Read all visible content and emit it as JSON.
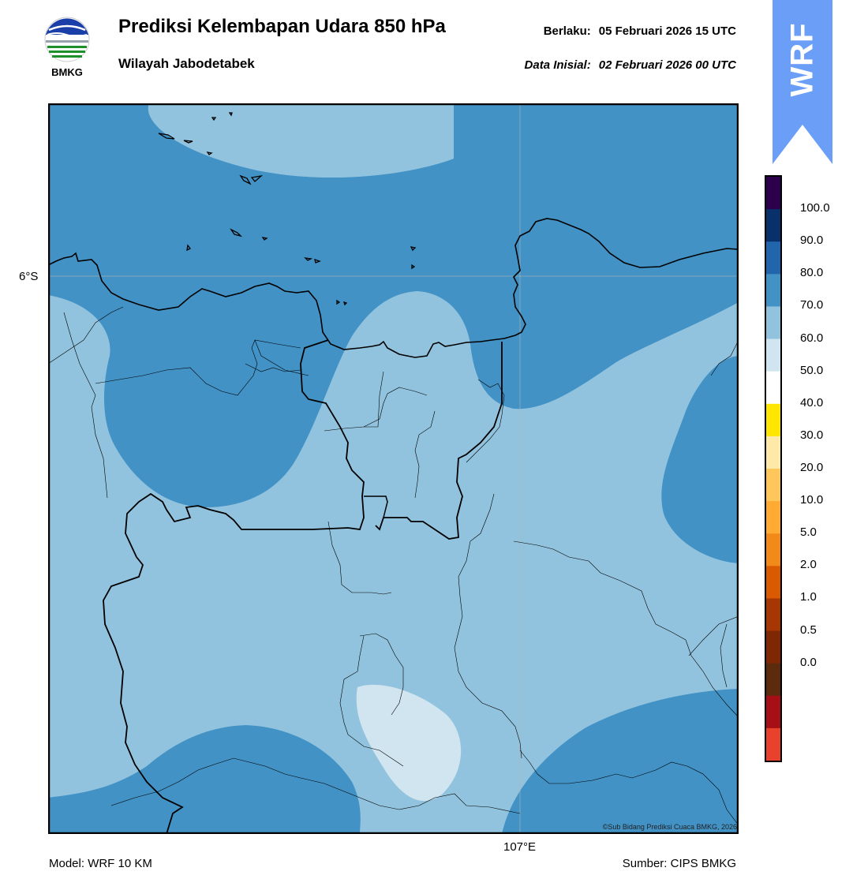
{
  "logo": {
    "text": "BMKG",
    "icon": "bmkg-logo-icon"
  },
  "header": {
    "title": "Prediksi Kelembapan Udara 850 hPa",
    "subtitle": "Wilayah Jabodetabek",
    "valid_label": "Berlaku:",
    "valid_value": "05 Februari 2026 15 UTC",
    "init_label": "Data Inisial:",
    "init_value": "02 Februari 2026 00 UTC"
  },
  "badge": {
    "text": "WRF",
    "color": "#6b9ef7"
  },
  "map": {
    "lat_label": "6°S",
    "lon_label": "107°E",
    "copyright": "©Sub Bidang Prediksi Cuaca BMKG, 2026",
    "colors": {
      "band_60_70": "#92c3de",
      "band_70_80": "#4292c6",
      "band_50_60": "#d1e5f0"
    }
  },
  "footer": {
    "model": "Model: WRF 10 KM",
    "source": "Sumber: CIPS BMKG"
  },
  "colorbar": {
    "labels": [
      "100.0",
      "90.0",
      "80.0",
      "70.0",
      "60.0",
      "50.0",
      "40.0",
      "30.0",
      "20.0",
      "10.0",
      "5.0",
      "2.0",
      "1.0",
      "0.5",
      "0.0"
    ],
    "colors": [
      "#2d004b",
      "#08306b",
      "#2166ac",
      "#4292c6",
      "#92c3de",
      "#d1e5f0",
      "#ffffff",
      "#ffe600",
      "#ffe9a8",
      "#ffc65c",
      "#ffaa33",
      "#f28a1a",
      "#d95a00",
      "#a63603",
      "#7f2704",
      "#5c2a0d",
      "#a50f15",
      "#e8412c"
    ]
  }
}
